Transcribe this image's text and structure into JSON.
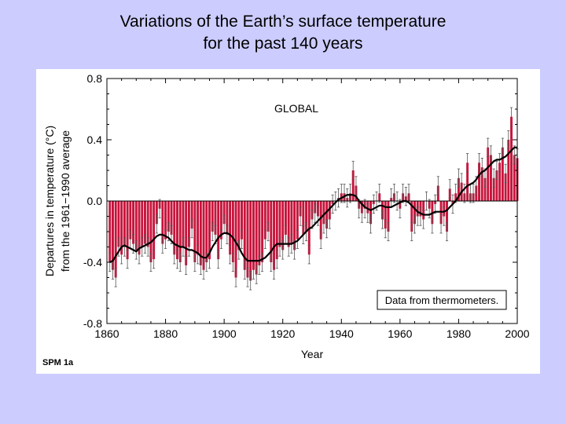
{
  "slide": {
    "title_line1": "Variations of the Earth’s surface temperature",
    "title_line2": "for the past 140 years",
    "label": "SPM 1a"
  },
  "colors": {
    "background": "#ccccff",
    "bar": "#c8143c",
    "line": "#000000",
    "error_bar": "#555555"
  },
  "chart_data": {
    "type": "bar",
    "panel_label": "GLOBAL",
    "annotation": "Data from thermometers.",
    "xlabel": "Year",
    "ylabel_line1": "Departures in temperature (°C)",
    "ylabel_line2": "from the 1961−1990 average",
    "xlim": [
      1860,
      2000
    ],
    "ylim": [
      -0.8,
      0.8
    ],
    "xticks": [
      1860,
      1880,
      1900,
      1920,
      1940,
      1960,
      1980,
      2000
    ],
    "yticks": [
      -0.8,
      -0.4,
      0.0,
      0.4,
      0.8
    ],
    "ytick_labels": [
      "-0.8",
      "-0.4",
      "0.0",
      "0.4",
      "0.8"
    ],
    "years": [
      1861,
      1862,
      1863,
      1864,
      1865,
      1866,
      1867,
      1868,
      1869,
      1870,
      1871,
      1872,
      1873,
      1874,
      1875,
      1876,
      1877,
      1878,
      1879,
      1880,
      1881,
      1882,
      1883,
      1884,
      1885,
      1886,
      1887,
      1888,
      1889,
      1890,
      1891,
      1892,
      1893,
      1894,
      1895,
      1896,
      1897,
      1898,
      1899,
      1900,
      1901,
      1902,
      1903,
      1904,
      1905,
      1906,
      1907,
      1908,
      1909,
      1910,
      1911,
      1912,
      1913,
      1914,
      1915,
      1916,
      1917,
      1918,
      1919,
      1920,
      1921,
      1922,
      1923,
      1924,
      1925,
      1926,
      1927,
      1928,
      1929,
      1930,
      1931,
      1932,
      1933,
      1934,
      1935,
      1936,
      1937,
      1938,
      1939,
      1940,
      1941,
      1942,
      1943,
      1944,
      1945,
      1946,
      1947,
      1948,
      1949,
      1950,
      1951,
      1952,
      1953,
      1954,
      1955,
      1956,
      1957,
      1958,
      1959,
      1960,
      1961,
      1962,
      1963,
      1964,
      1965,
      1966,
      1967,
      1968,
      1969,
      1970,
      1971,
      1972,
      1973,
      1974,
      1975,
      1976,
      1977,
      1978,
      1979,
      1980,
      1981,
      1982,
      1983,
      1984,
      1985,
      1986,
      1987,
      1988,
      1989,
      1990,
      1991,
      1992,
      1993,
      1994,
      1995,
      1996,
      1997,
      1998,
      1999,
      2000
    ],
    "anomalies": [
      -0.4,
      -0.45,
      -0.5,
      -0.3,
      -0.35,
      -0.3,
      -0.38,
      -0.25,
      -0.28,
      -0.32,
      -0.35,
      -0.3,
      -0.28,
      -0.3,
      -0.4,
      -0.38,
      -0.15,
      -0.05,
      -0.28,
      -0.25,
      -0.2,
      -0.22,
      -0.35,
      -0.38,
      -0.4,
      -0.3,
      -0.42,
      -0.3,
      -0.18,
      -0.4,
      -0.35,
      -0.42,
      -0.45,
      -0.4,
      -0.38,
      -0.2,
      -0.22,
      -0.38,
      -0.25,
      -0.15,
      -0.22,
      -0.35,
      -0.4,
      -0.5,
      -0.32,
      -0.25,
      -0.45,
      -0.5,
      -0.52,
      -0.45,
      -0.48,
      -0.42,
      -0.4,
      -0.25,
      -0.2,
      -0.4,
      -0.45,
      -0.38,
      -0.3,
      -0.32,
      -0.22,
      -0.3,
      -0.28,
      -0.32,
      -0.25,
      -0.1,
      -0.22,
      -0.2,
      -0.35,
      -0.12,
      -0.08,
      -0.1,
      -0.25,
      -0.15,
      -0.18,
      -0.12,
      -0.02,
      0.0,
      0.02,
      0.05,
      0.05,
      0.02,
      0.05,
      0.2,
      0.1,
      -0.05,
      -0.08,
      -0.05,
      -0.08,
      -0.15,
      -0.02,
      0.0,
      0.05,
      -0.12,
      -0.18,
      -0.2,
      0.02,
      0.05,
      0.0,
      -0.05,
      0.05,
      0.03,
      0.05,
      -0.2,
      -0.15,
      -0.1,
      -0.1,
      -0.12,
      0.0,
      -0.05,
      -0.15,
      -0.02,
      0.1,
      -0.15,
      -0.1,
      -0.2,
      0.08,
      -0.02,
      0.05,
      0.15,
      0.12,
      0.05,
      0.25,
      0.05,
      0.05,
      0.1,
      0.25,
      0.22,
      0.15,
      0.35,
      0.3,
      0.15,
      0.2,
      0.25,
      0.35,
      0.18,
      0.4,
      0.55,
      0.3,
      0.28
    ],
    "smoothed": [
      -0.4,
      -0.39,
      -0.36,
      -0.33,
      -0.3,
      -0.29,
      -0.3,
      -0.31,
      -0.32,
      -0.33,
      -0.31,
      -0.3,
      -0.29,
      -0.28,
      -0.27,
      -0.25,
      -0.23,
      -0.22,
      -0.22,
      -0.23,
      -0.24,
      -0.26,
      -0.28,
      -0.29,
      -0.3,
      -0.3,
      -0.31,
      -0.32,
      -0.32,
      -0.33,
      -0.34,
      -0.36,
      -0.37,
      -0.37,
      -0.34,
      -0.3,
      -0.27,
      -0.24,
      -0.22,
      -0.21,
      -0.21,
      -0.22,
      -0.24,
      -0.27,
      -0.3,
      -0.34,
      -0.37,
      -0.39,
      -0.39,
      -0.39,
      -0.39,
      -0.39,
      -0.38,
      -0.37,
      -0.35,
      -0.33,
      -0.3,
      -0.28,
      -0.28,
      -0.28,
      -0.28,
      -0.28,
      -0.28,
      -0.27,
      -0.26,
      -0.24,
      -0.22,
      -0.2,
      -0.18,
      -0.17,
      -0.15,
      -0.13,
      -0.11,
      -0.09,
      -0.07,
      -0.05,
      -0.03,
      -0.01,
      0.01,
      0.02,
      0.03,
      0.04,
      0.04,
      0.04,
      0.03,
      0.0,
      -0.02,
      -0.04,
      -0.05,
      -0.06,
      -0.05,
      -0.04,
      -0.03,
      -0.03,
      -0.04,
      -0.04,
      -0.04,
      -0.03,
      -0.02,
      -0.01,
      0.0,
      0.0,
      -0.01,
      -0.03,
      -0.05,
      -0.07,
      -0.08,
      -0.09,
      -0.09,
      -0.09,
      -0.08,
      -0.07,
      -0.07,
      -0.07,
      -0.07,
      -0.06,
      -0.04,
      -0.02,
      0.0,
      0.03,
      0.06,
      0.08,
      0.1,
      0.11,
      0.12,
      0.14,
      0.17,
      0.19,
      0.2,
      0.22,
      0.24,
      0.26,
      0.27,
      0.27,
      0.28,
      0.29,
      0.31,
      0.33,
      0.35,
      0.35
    ]
  }
}
